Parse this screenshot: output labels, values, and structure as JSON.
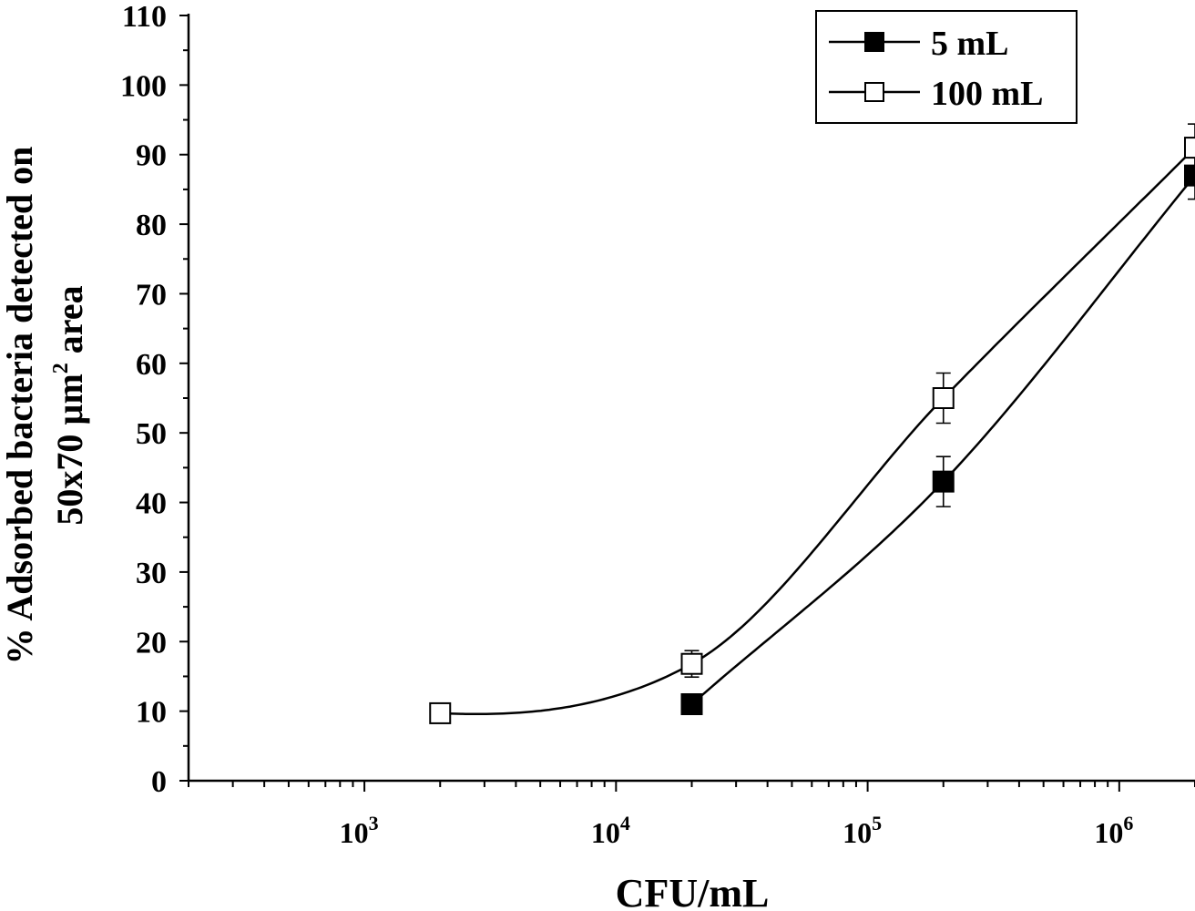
{
  "chart_data": {
    "type": "line",
    "title": "",
    "xlabel": "CFU/mL",
    "ylabel_line1": "% Adsorbed bacteria detected on",
    "ylabel_line2_prefix": "50x70 µm",
    "ylabel_line2_sup": "2",
    "ylabel_line2_suffix": " area",
    "xscale": "log",
    "xlim": [
      200,
      2000000
    ],
    "ylim": [
      0,
      110
    ],
    "yticks": [
      0,
      10,
      20,
      30,
      40,
      50,
      60,
      70,
      80,
      90,
      100,
      110
    ],
    "xticks_major": [
      {
        "value": 1000,
        "base": "10",
        "exp": "3"
      },
      {
        "value": 10000,
        "base": "10",
        "exp": "4"
      },
      {
        "value": 100000,
        "base": "10",
        "exp": "5"
      },
      {
        "value": 1000000,
        "base": "10",
        "exp": "6"
      }
    ],
    "legend_position": "top-right",
    "series": [
      {
        "name": "5 mL",
        "marker": "filled-square",
        "color": "#000000",
        "x": [
          20000,
          200000,
          2000000
        ],
        "y": [
          11,
          43,
          87
        ],
        "yerr": [
          0.6,
          3.6,
          3.4
        ]
      },
      {
        "name": "100 mL",
        "marker": "open-square",
        "color": "#000000",
        "x": [
          2000,
          20000,
          200000,
          2000000
        ],
        "y": [
          9.7,
          16.8,
          55,
          91
        ],
        "yerr": [
          1.4,
          1.9,
          3.6,
          3.4
        ]
      }
    ]
  }
}
